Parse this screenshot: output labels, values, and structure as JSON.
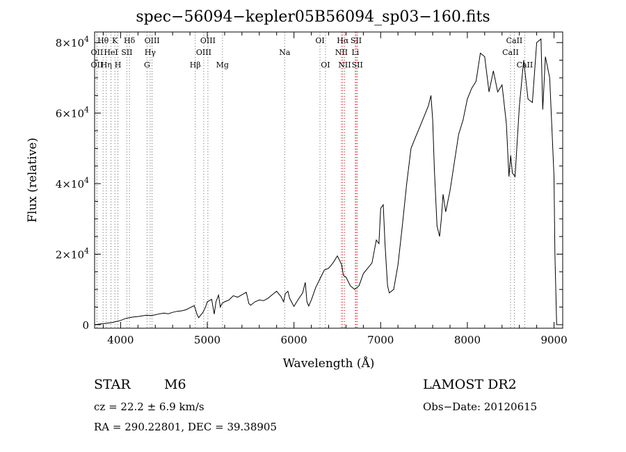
{
  "chart_data": {
    "type": "line",
    "title": "spec−56094−kepler05B56094_sp03−160.fits",
    "xlabel": "Wavelength (Å)",
    "ylabel": "Flux (relative)",
    "xlim": [
      3700,
      9100
    ],
    "ylim": [
      -1000,
      83000
    ],
    "x_ticks": [
      {
        "value": 4000,
        "label": "4000"
      },
      {
        "value": 5000,
        "label": "5000"
      },
      {
        "value": 6000,
        "label": "6000"
      },
      {
        "value": 7000,
        "label": "7000"
      },
      {
        "value": 8000,
        "label": "8000"
      },
      {
        "value": 9000,
        "label": "9000"
      }
    ],
    "y_ticks": [
      {
        "value": 0,
        "mant": "0",
        "exp": ""
      },
      {
        "value": 20000,
        "mant": "2×10",
        "exp": "4"
      },
      {
        "value": 40000,
        "mant": "4×10",
        "exp": "4"
      },
      {
        "value": 60000,
        "mant": "6×10",
        "exp": "4"
      },
      {
        "value": 80000,
        "mant": "8×10",
        "exp": "4"
      }
    ],
    "lines": [
      {
        "label": "Hθ",
        "wave": 3798,
        "row": 0
      },
      {
        "label": "OII",
        "wave": 3727,
        "row": 1
      },
      {
        "label": "OII",
        "wave": 3727,
        "row": 2
      },
      {
        "label": "Hη",
        "wave": 3835,
        "row": 2
      },
      {
        "label": "K",
        "wave": 3934,
        "row": 0
      },
      {
        "label": "HeI",
        "wave": 3889,
        "row": 1
      },
      {
        "label": "H",
        "wave": 3969,
        "row": 2
      },
      {
        "label": "SII",
        "wave": 4072,
        "row": 1
      },
      {
        "label": "Hδ",
        "wave": 4102,
        "row": 0
      },
      {
        "label": "OIII",
        "wave": 4363,
        "row": 0
      },
      {
        "label": "Hγ",
        "wave": 4341,
        "row": 1
      },
      {
        "label": "G",
        "wave": 4305,
        "row": 2
      },
      {
        "label": "Hβ",
        "wave": 4861,
        "row": 2
      },
      {
        "label": "OIII",
        "wave": 5007,
        "row": 0
      },
      {
        "label": "OIII",
        "wave": 4959,
        "row": 1
      },
      {
        "label": "Mg",
        "wave": 5175,
        "row": 2
      },
      {
        "label": "Na",
        "wave": 5893,
        "row": 1
      },
      {
        "label": "OI",
        "wave": 6300,
        "row": 0
      },
      {
        "label": "OI",
        "wave": 6363,
        "row": 2
      },
      {
        "label": "Hα",
        "wave": 6563,
        "row": 0
      },
      {
        "label": "NII",
        "wave": 6548,
        "row": 1
      },
      {
        "label": "NII",
        "wave": 6584,
        "row": 2
      },
      {
        "label": "SII",
        "wave": 6717,
        "row": 0
      },
      {
        "label": "Li",
        "wave": 6708,
        "row": 1
      },
      {
        "label": "SII",
        "wave": 6731,
        "row": 2
      },
      {
        "label": "CaII",
        "wave": 8542,
        "row": 0
      },
      {
        "label": "CaII",
        "wave": 8498,
        "row": 1
      },
      {
        "label": "CaII",
        "wave": 8662,
        "row": 2
      }
    ],
    "series": [
      {
        "x": [
          3700,
          3800,
          3900,
          3950,
          4000,
          4050,
          4100,
          4150,
          4200,
          4250,
          4300,
          4350,
          4400,
          4450,
          4500,
          4550,
          4600,
          4650,
          4700,
          4750,
          4800,
          4850,
          4880,
          4900,
          4950,
          4980,
          5000,
          5050,
          5080,
          5100,
          5130,
          5150,
          5170,
          5200,
          5250,
          5300,
          5350,
          5400,
          5450,
          5480,
          5500,
          5550,
          5600,
          5650,
          5700,
          5750,
          5800,
          5850,
          5880,
          5900,
          5930,
          5950,
          6000,
          6050,
          6100,
          6130,
          6150,
          6170,
          6200,
          6250,
          6300,
          6350,
          6400,
          6450,
          6500,
          6550,
          6570,
          6600,
          6650,
          6700,
          6750,
          6800,
          6850,
          6900,
          6950,
          6980,
          7000,
          7030,
          7050,
          7080,
          7100,
          7150,
          7200,
          7250,
          7300,
          7350,
          7400,
          7450,
          7500,
          7550,
          7580,
          7600,
          7620,
          7650,
          7680,
          7700,
          7720,
          7750,
          7800,
          7850,
          7900,
          7950,
          8000,
          8050,
          8100,
          8150,
          8200,
          8250,
          8300,
          8350,
          8400,
          8450,
          8480,
          8500,
          8520,
          8550,
          8600,
          8650,
          8700,
          8750,
          8800,
          8850,
          8870,
          8900,
          8950,
          9000,
          9010,
          9030
        ],
        "y": [
          0,
          300,
          600,
          900,
          1200,
          1700,
          2000,
          2200,
          2300,
          2500,
          2700,
          2600,
          2800,
          3100,
          3300,
          3100,
          3500,
          3800,
          3900,
          4200,
          4800,
          5400,
          3000,
          2000,
          3500,
          5000,
          6500,
          7200,
          3000,
          6500,
          8400,
          5000,
          6000,
          6500,
          7000,
          8200,
          7800,
          8500,
          9200,
          6000,
          5500,
          6500,
          7000,
          6800,
          7500,
          8500,
          9500,
          8000,
          6500,
          8800,
          9500,
          7500,
          5200,
          7200,
          9000,
          12000,
          6500,
          5300,
          7000,
          10500,
          13000,
          15500,
          16000,
          17500,
          19500,
          17000,
          14000,
          13500,
          11000,
          10000,
          11000,
          14500,
          16000,
          17500,
          24000,
          23000,
          33000,
          34000,
          23000,
          11000,
          9000,
          10000,
          17000,
          28000,
          40000,
          50000,
          53000,
          56000,
          59000,
          62000,
          65000,
          58000,
          44000,
          28000,
          25000,
          30000,
          37000,
          32000,
          38000,
          46000,
          54000,
          58000,
          64000,
          67000,
          69000,
          77000,
          76000,
          66000,
          72000,
          66000,
          68000,
          57000,
          42000,
          48000,
          43000,
          42000,
          62000,
          75000,
          64000,
          63000,
          80000,
          81000,
          61000,
          76000,
          70000,
          42000,
          20000,
          0
        ]
      }
    ]
  },
  "info": {
    "obj_class": "STAR",
    "subclass": "M6",
    "survey": "LAMOST DR2",
    "cz": "cz = 22.2 ± 6.9 km/s",
    "obs_date": "Obs−Date: 20120615",
    "radec": "RA = 290.22801, DEC =  39.38905"
  }
}
